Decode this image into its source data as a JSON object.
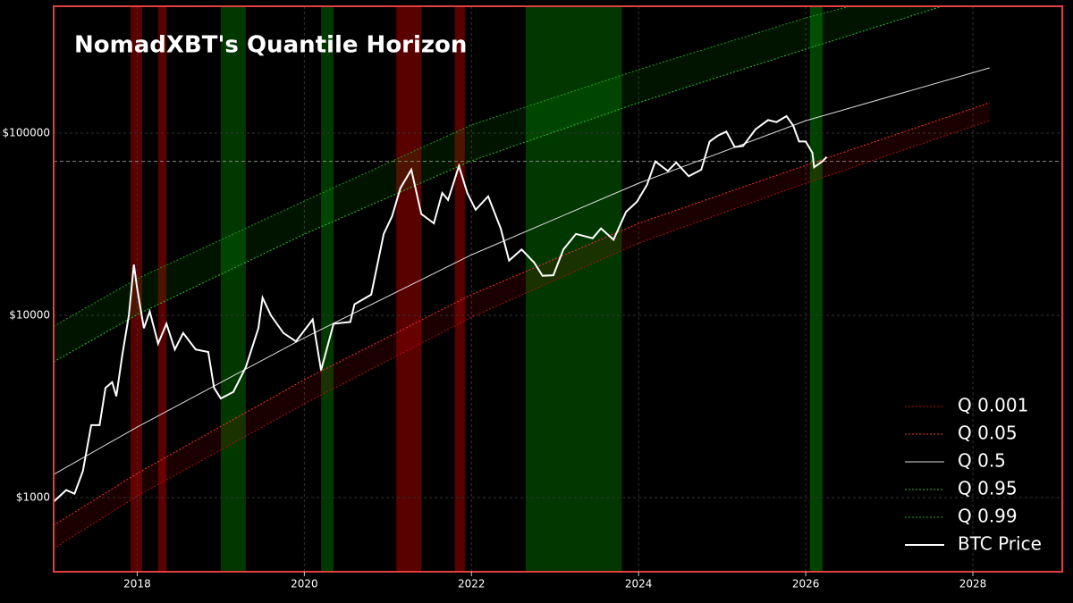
{
  "chart_data": {
    "type": "line",
    "title": "NomadXBT's Quantile Horizon",
    "log_scale": true,
    "grid": true,
    "legend_position": "lower right",
    "xlim": [
      2017.0,
      2029.07
    ],
    "xticks": [
      2018,
      2020,
      2022,
      2024,
      2026,
      2028
    ],
    "ylim": [
      392,
      497000
    ],
    "yticks": [
      {
        "value": 1000,
        "label": "$1000"
      },
      {
        "value": 10000,
        "label": "$10000"
      },
      {
        "value": 100000,
        "label": "$100000"
      }
    ],
    "reference_line": 70000,
    "bands": [
      {
        "start": 2017.92,
        "end": 2018.06,
        "color": "#ff0000"
      },
      {
        "start": 2018.25,
        "end": 2018.35,
        "color": "#ff0000"
      },
      {
        "start": 2021.1,
        "end": 2021.4,
        "color": "#ff0000"
      },
      {
        "start": 2021.8,
        "end": 2021.92,
        "color": "#ff0000"
      },
      {
        "start": 2019.0,
        "end": 2019.3,
        "color": "#00a000"
      },
      {
        "start": 2020.2,
        "end": 2020.35,
        "color": "#00a000"
      },
      {
        "start": 2022.65,
        "end": 2023.8,
        "color": "#00a000"
      },
      {
        "start": 2026.05,
        "end": 2026.2,
        "color": "#00c000"
      }
    ],
    "fills": [
      {
        "between": [
          0,
          1
        ],
        "color": "#ff0000"
      },
      {
        "between": [
          3,
          4
        ],
        "color": "#00c000"
      }
    ],
    "series": [
      {
        "name": "Q 0.001",
        "color": "#b01010",
        "dash": true,
        "x": [
          2017,
          2018,
          2020,
          2022,
          2024,
          2026,
          2028.2
        ],
        "values": [
          525,
          1020,
          3270,
          9770,
          24900,
          53100,
          117000
        ]
      },
      {
        "name": "Q 0.05",
        "color": "#ff3030",
        "dash": true,
        "x": [
          2017,
          2018,
          2020,
          2022,
          2024,
          2026,
          2028.2
        ],
        "values": [
          705,
          1360,
          4440,
          13000,
          32000,
          66700,
          147000
        ]
      },
      {
        "name": "Q 0.5",
        "color": "#dddddd",
        "dash": false,
        "x": [
          2017,
          2018,
          2020,
          2022,
          2024,
          2026,
          2028.2
        ],
        "values": [
          1340,
          2440,
          7530,
          21500,
          53100,
          117000,
          228000
        ]
      },
      {
        "name": "Q 0.95",
        "color": "#30c030",
        "dash": true,
        "x": [
          2017,
          2018,
          2020,
          2022,
          2024,
          2026,
          2028.2
        ],
        "values": [
          5560,
          10100,
          27900,
          70500,
          147000,
          289000,
          600000
        ]
      },
      {
        "name": "Q 0.99",
        "color": "#20a020",
        "dash": true,
        "x": [
          2017,
          2018,
          2020,
          2022,
          2024,
          2026,
          2028.2
        ],
        "values": [
          8730,
          15900,
          42400,
          111000,
          223000,
          429000,
          795000
        ]
      },
      {
        "name": "BTC Price",
        "color": "#ffffff",
        "dash": false,
        "thick": true,
        "x": [
          2017.0,
          2017.15,
          2017.25,
          2017.35,
          2017.45,
          2017.55,
          2017.62,
          2017.7,
          2017.75,
          2017.82,
          2017.9,
          2017.96,
          2018.0,
          2018.08,
          2018.15,
          2018.25,
          2018.35,
          2018.45,
          2018.55,
          2018.7,
          2018.85,
          2018.92,
          2019.0,
          2019.15,
          2019.3,
          2019.45,
          2019.5,
          2019.6,
          2019.75,
          2019.9,
          2020.1,
          2020.2,
          2020.35,
          2020.55,
          2020.6,
          2020.8,
          2020.95,
          2021.05,
          2021.15,
          2021.28,
          2021.4,
          2021.55,
          2021.65,
          2021.72,
          2021.85,
          2021.95,
          2022.05,
          2022.2,
          2022.35,
          2022.45,
          2022.6,
          2022.75,
          2022.85,
          2022.98,
          2023.1,
          2023.25,
          2023.45,
          2023.55,
          2023.7,
          2023.85,
          2023.98,
          2024.1,
          2024.2,
          2024.35,
          2024.45,
          2024.6,
          2024.75,
          2024.85,
          2024.95,
          2025.05,
          2025.15,
          2025.25,
          2025.4,
          2025.55,
          2025.65,
          2025.77,
          2025.85,
          2025.92,
          2026.0,
          2026.08,
          2026.1,
          2026.2,
          2026.25
        ],
        "values": [
          950,
          1100,
          1050,
          1400,
          2500,
          2500,
          4000,
          4300,
          3600,
          6000,
          10000,
          19000,
          14000,
          8500,
          10500,
          7000,
          9000,
          6500,
          8000,
          6500,
          6300,
          4000,
          3500,
          3800,
          5200,
          8500,
          12500,
          10000,
          8000,
          7200,
          9500,
          5000,
          9000,
          9200,
          11500,
          13000,
          28000,
          35000,
          50000,
          63000,
          36000,
          32000,
          47000,
          43000,
          66000,
          47000,
          38000,
          45000,
          30000,
          20000,
          23000,
          19500,
          16500,
          16600,
          23000,
          28000,
          26500,
          30000,
          26000,
          37000,
          42000,
          52000,
          70000,
          62000,
          69000,
          58000,
          63000,
          90000,
          97000,
          102000,
          84000,
          85000,
          105000,
          118000,
          115000,
          124000,
          110000,
          90000,
          90000,
          78000,
          65000,
          70000,
          74000
        ]
      }
    ]
  }
}
